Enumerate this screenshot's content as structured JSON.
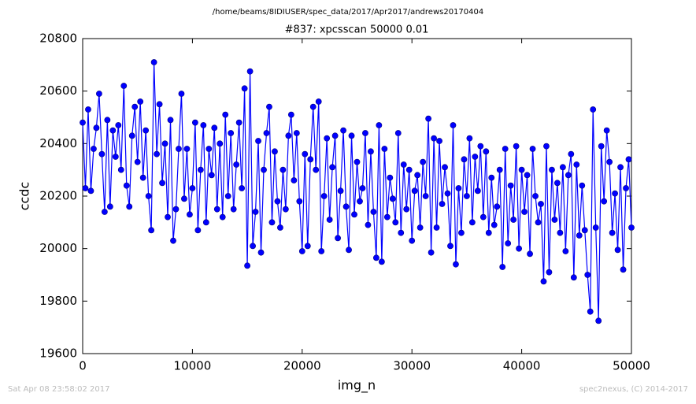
{
  "header": "/home/beams/8IDIUSER/spec_data/2017/Apr2017/andrews20170404",
  "footer_left": "Sat Apr 08 23:58:02 2017",
  "footer_right": "spec2nexus, (C) 2014-2017",
  "chart_data": {
    "type": "line",
    "title": "#837: xpcsscan 50000 0.01",
    "x_label": "img_n",
    "y_label": "ccdc",
    "xlim": [
      0,
      50000
    ],
    "xticks": [
      0,
      10000,
      20000,
      30000,
      40000,
      50000
    ],
    "ylim": [
      19600,
      20800
    ],
    "yticks": [
      19600,
      19800,
      20000,
      20200,
      20400,
      20600,
      20800
    ],
    "grid": false,
    "marker": "circle",
    "x": [
      0,
      250,
      500,
      750,
      1000,
      1250,
      1500,
      1750,
      2000,
      2250,
      2500,
      2750,
      3000,
      3250,
      3500,
      3750,
      4000,
      4250,
      4500,
      4750,
      5000,
      5250,
      5500,
      5750,
      6000,
      6250,
      6500,
      6750,
      7000,
      7250,
      7500,
      7750,
      8000,
      8250,
      8500,
      8750,
      9000,
      9250,
      9500,
      9750,
      10000,
      10250,
      10500,
      10750,
      11000,
      11250,
      11500,
      11750,
      12000,
      12250,
      12500,
      12750,
      13000,
      13250,
      13500,
      13750,
      14000,
      14250,
      14500,
      14750,
      15000,
      15250,
      15500,
      15750,
      16000,
      16250,
      16500,
      16750,
      17000,
      17250,
      17500,
      17750,
      18000,
      18250,
      18500,
      18750,
      19000,
      19250,
      19500,
      19750,
      20000,
      20250,
      20500,
      20750,
      21000,
      21250,
      21500,
      21750,
      22000,
      22250,
      22500,
      22750,
      23000,
      23250,
      23500,
      23750,
      24000,
      24250,
      24500,
      24750,
      25000,
      25250,
      25500,
      25750,
      26000,
      26250,
      26500,
      26750,
      27000,
      27250,
      27500,
      27750,
      28000,
      28250,
      28500,
      28750,
      29000,
      29250,
      29500,
      29750,
      30000,
      30250,
      30500,
      30750,
      31000,
      31250,
      31500,
      31750,
      32000,
      32250,
      32500,
      32750,
      33000,
      33250,
      33500,
      33750,
      34000,
      34250,
      34500,
      34750,
      35000,
      35250,
      35500,
      35750,
      36000,
      36250,
      36500,
      36750,
      37000,
      37250,
      37500,
      37750,
      38000,
      38250,
      38500,
      38750,
      39000,
      39250,
      39500,
      39750,
      40000,
      40250,
      40500,
      40750,
      41000,
      41250,
      41500,
      41750,
      42000,
      42250,
      42500,
      42750,
      43000,
      43250,
      43500,
      43750,
      44000,
      44250,
      44500,
      44750,
      45000,
      45250,
      45500,
      45750,
      46000,
      46250,
      46500,
      46750,
      47000,
      47250,
      47500,
      47750,
      48000,
      48250,
      48500,
      48750,
      49000,
      49250,
      49500,
      49750,
      50000
    ],
    "series": [
      {
        "name": "ccdc",
        "color": "#0000ff",
        "values": [
          20480,
          20230,
          20530,
          20220,
          20380,
          20460,
          20590,
          20360,
          20140,
          20490,
          20160,
          20450,
          20350,
          20470,
          20300,
          20620,
          20240,
          20160,
          20430,
          20540,
          20330,
          20560,
          20270,
          20450,
          20200,
          20070,
          20710,
          20360,
          20550,
          20250,
          20400,
          20120,
          20490,
          20030,
          20150,
          20380,
          20590,
          20190,
          20380,
          20130,
          20230,
          20480,
          20070,
          20300,
          20470,
          20100,
          20380,
          20280,
          20460,
          20150,
          20400,
          20120,
          20510,
          20200,
          20440,
          20150,
          20320,
          20480,
          20230,
          20610,
          19935,
          20675,
          20010,
          20140,
          20410,
          19985,
          20300,
          20440,
          20540,
          20100,
          20370,
          20180,
          20080,
          20300,
          20150,
          20430,
          20510,
          20260,
          20440,
          20180,
          19990,
          20360,
          20010,
          20340,
          20540,
          20300,
          20560,
          19990,
          20200,
          20420,
          20110,
          20310,
          20430,
          20040,
          20220,
          20450,
          20160,
          19995,
          20430,
          20130,
          20330,
          20180,
          20230,
          20440,
          20090,
          20370,
          20140,
          19965,
          20470,
          19950,
          20380,
          20120,
          20270,
          20190,
          20100,
          20440,
          20060,
          20320,
          20150,
          20300,
          20030,
          20220,
          20280,
          20080,
          20330,
          20200,
          20495,
          19985,
          20420,
          20080,
          20410,
          20170,
          20310,
          20210,
          20010,
          20470,
          19940,
          20230,
          20060,
          20340,
          20200,
          20420,
          20100,
          20350,
          20220,
          20390,
          20120,
          20370,
          20060,
          20270,
          20090,
          20160,
          20300,
          19930,
          20380,
          20020,
          20240,
          20110,
          20390,
          20000,
          20300,
          20140,
          20280,
          19980,
          20380,
          20200,
          20100,
          20170,
          19875,
          20390,
          19910,
          20300,
          20110,
          20250,
          20060,
          20310,
          19990,
          20280,
          20360,
          19890,
          20320,
          20050,
          20240,
          20070,
          19900,
          19760,
          20530,
          20080,
          19725,
          20390,
          20180,
          20450,
          20330,
          20060,
          20210,
          19995,
          20310,
          19920,
          20230,
          20340,
          20080
        ]
      }
    ]
  }
}
